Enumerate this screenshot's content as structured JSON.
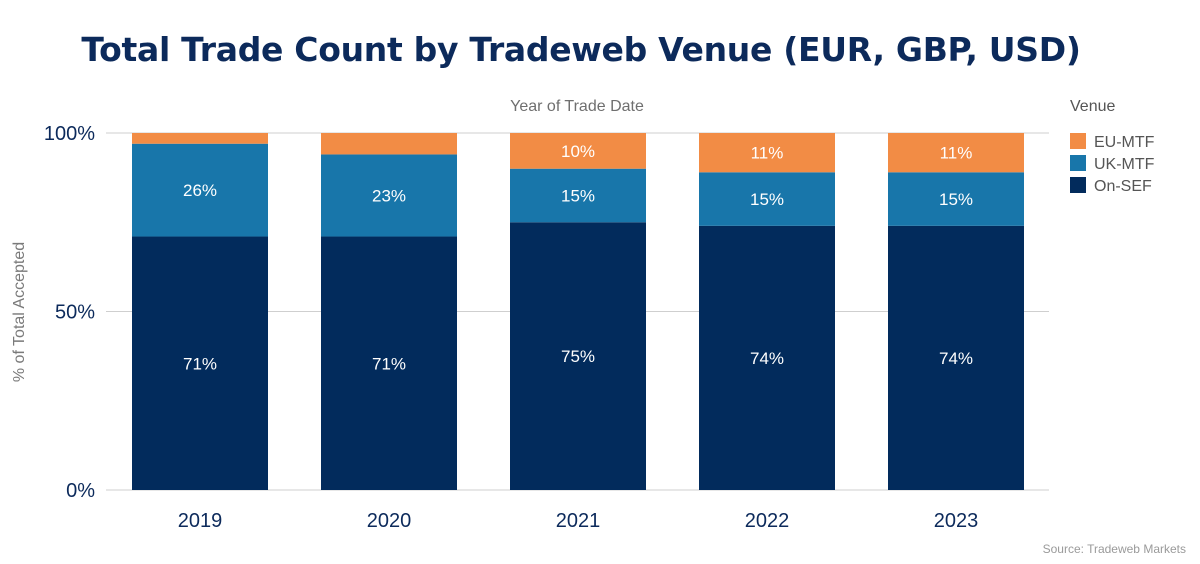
{
  "chart_data": {
    "type": "bar",
    "stacked": true,
    "title": "Total Trade Count by Tradeweb Venue (EUR, GBP, USD)",
    "xlabel": "Year of Trade Date",
    "ylabel": "% of Total Accepted",
    "categories": [
      "2019",
      "2020",
      "2021",
      "2022",
      "2023"
    ],
    "ylim": [
      0,
      100
    ],
    "yticks": [
      0,
      50,
      100
    ],
    "ytick_labels": [
      "0%",
      "50%",
      "100%"
    ],
    "series": [
      {
        "name": "On-SEF",
        "color": "#022b5c",
        "values": [
          71,
          71,
          75,
          74,
          74
        ],
        "labels": [
          "71%",
          "71%",
          "75%",
          "74%",
          "74%"
        ]
      },
      {
        "name": "UK-MTF",
        "color": "#1876aa",
        "values": [
          26,
          23,
          15,
          15,
          15
        ],
        "labels": [
          "26%",
          "23%",
          "15%",
          "15%",
          "15%"
        ]
      },
      {
        "name": "EU-MTF",
        "color": "#f28c45",
        "values": [
          3,
          6,
          10,
          11,
          11
        ],
        "labels": [
          "",
          "",
          "10%",
          "11%",
          "11%"
        ]
      }
    ],
    "legend": {
      "title": "Venue",
      "placement": "right",
      "order": [
        "EU-MTF",
        "UK-MTF",
        "On-SEF"
      ]
    },
    "grid": true
  },
  "source": "Source: Tradeweb Markets"
}
